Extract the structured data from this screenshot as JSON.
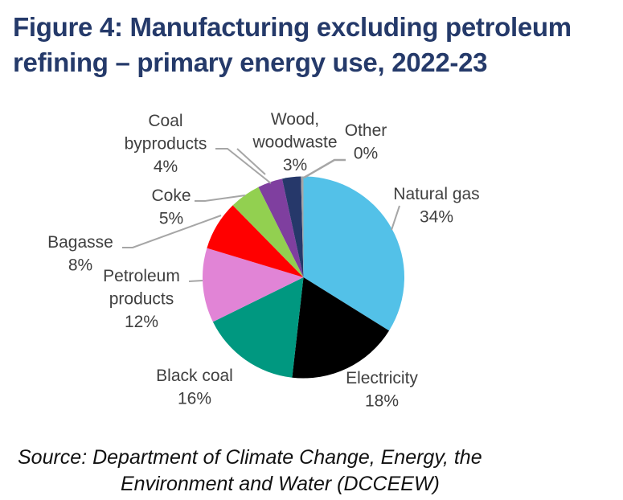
{
  "title": {
    "line1": "Figure 4: Manufacturing excluding petroleum",
    "line2": "refining – primary energy use, 2022-23"
  },
  "source": {
    "line1": "Source: Department of Climate Change, Energy, the",
    "line2": "Environment and Water (DCCEEW)"
  },
  "chart_data": {
    "type": "pie",
    "title": "Figure 4: Manufacturing excluding petroleum refining – primary energy use, 2022-23",
    "unit": "%",
    "start": "top, clockwise",
    "slices": [
      {
        "name": "Natural gas",
        "value": 34,
        "label_lines": [
          "Natural gas",
          "34%"
        ],
        "color": "#53c1e8"
      },
      {
        "name": "Electricity",
        "value": 18,
        "label_lines": [
          "Electricity",
          "18%"
        ],
        "color": "#000000"
      },
      {
        "name": "Black coal",
        "value": 16,
        "label_lines": [
          "Black coal",
          "16%"
        ],
        "color": "#009880"
      },
      {
        "name": "Petroleum products",
        "value": 12,
        "label_lines": [
          "Petroleum",
          "products",
          "12%"
        ],
        "color": "#e184d6"
      },
      {
        "name": "Bagasse",
        "value": 8,
        "label_lines": [
          "Bagasse",
          "8%"
        ],
        "color": "#ff0000"
      },
      {
        "name": "Coke",
        "value": 5,
        "label_lines": [
          "Coke",
          "5%"
        ],
        "color": "#92d050"
      },
      {
        "name": "Coal byproducts",
        "value": 4,
        "label_lines": [
          "Coal",
          "byproducts",
          "4%"
        ],
        "color": "#7f3f9f"
      },
      {
        "name": "Wood, woodwaste",
        "value": 3,
        "label_lines": [
          "Wood,",
          "woodwaste",
          "3%"
        ],
        "color": "#26386a"
      },
      {
        "name": "Other",
        "value": 0.4,
        "label_lines": [
          "Other",
          "0%"
        ],
        "color": "#a6a6a6"
      }
    ],
    "leader_line_color": "#a6a6a6",
    "legend": "none"
  }
}
